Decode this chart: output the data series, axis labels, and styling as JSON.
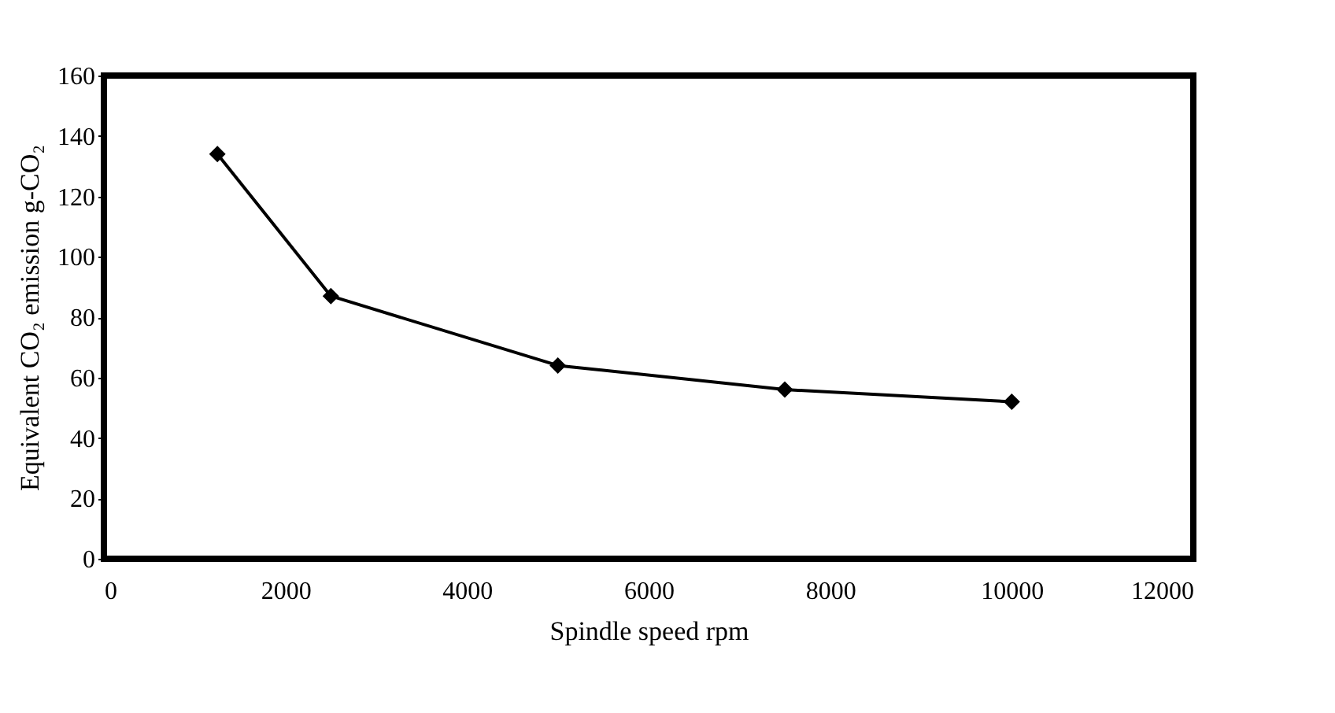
{
  "chart_data": {
    "type": "line",
    "xlabel": "Spindle speed  rpm",
    "ylabel": "Equivalent CO₂ emission  g-CO₂",
    "x": [
      1250,
      2500,
      5000,
      7500,
      10000
    ],
    "series": [
      {
        "color": "#000000",
        "values": [
          134,
          87,
          64,
          56,
          52
        ]
      }
    ],
    "xlim": [
      0,
      12000
    ],
    "xticks": [
      0,
      2000,
      4000,
      6000,
      8000,
      10000,
      12000
    ],
    "ylim": [
      0,
      160
    ],
    "yticks": [
      0,
      20,
      40,
      60,
      80,
      100,
      120,
      140,
      160
    ],
    "grid": false,
    "legend": false,
    "marker": "diamond",
    "line_style": "solid"
  }
}
